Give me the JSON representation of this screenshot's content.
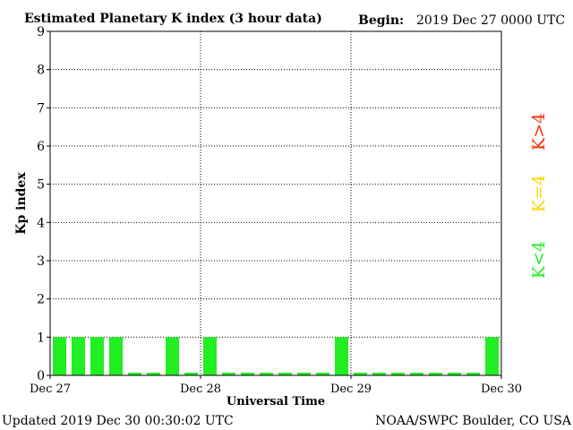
{
  "header": {
    "title": "Estimated Planetary K index (3 hour data)",
    "begin_label": "Begin:",
    "begin_value": "2019 Dec 27 0000 UTC"
  },
  "footer": {
    "updated": "Updated 2019 Dec 30 00:30:02 UTC",
    "credit": "NOAA/SWPC Boulder, CO USA"
  },
  "legend": {
    "high": {
      "label": "K>4",
      "color": "#ff2a00"
    },
    "mid": {
      "label": "K=4",
      "color": "#ffd400"
    },
    "low": {
      "label": "K<4",
      "color": "#22ee22"
    }
  },
  "chart_data": {
    "type": "bar",
    "ylabel": "Kp index",
    "xlabel": "Universal Time",
    "ylim": [
      0,
      9
    ],
    "yticks": [
      "0",
      "1",
      "2",
      "3",
      "4",
      "5",
      "6",
      "7",
      "8",
      "9"
    ],
    "xticks": [
      "Dec 27",
      "Dec 28",
      "Dec 29",
      "Dec 30"
    ],
    "grid": true,
    "bar_color": "#22ee22",
    "values": [
      1,
      1,
      1,
      1,
      0,
      0,
      1,
      0,
      1,
      0,
      0,
      0,
      0,
      0,
      0,
      1,
      0,
      0,
      0,
      0,
      0,
      0,
      0,
      1
    ]
  }
}
